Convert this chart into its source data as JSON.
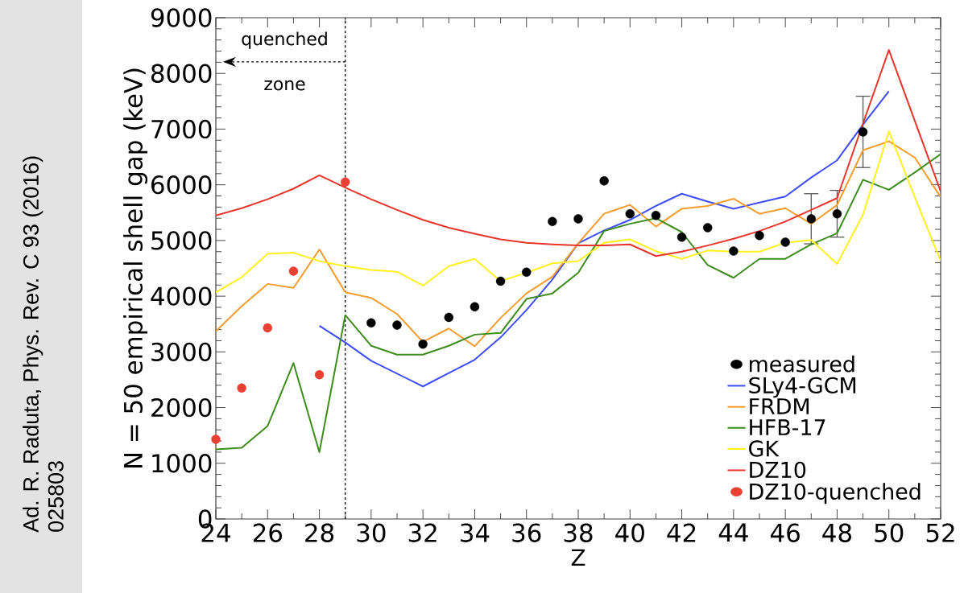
{
  "chart_data": {
    "type": "line",
    "xlabel": "Z",
    "ylabel": "N = 50 empirical shell gap (keV)",
    "xlim": [
      24,
      52
    ],
    "ylim": [
      0,
      9000
    ],
    "xticks": [
      24,
      26,
      28,
      30,
      32,
      34,
      36,
      38,
      40,
      42,
      44,
      46,
      48,
      50,
      52
    ],
    "yticks": [
      0,
      1000,
      2000,
      3000,
      4000,
      5000,
      6000,
      7000,
      8000,
      9000
    ],
    "legend": "bottom right",
    "series": [
      {
        "name": "measured",
        "type": "scatter",
        "marker": "circle",
        "color": "#000000",
        "x": [
          30,
          31,
          32,
          33,
          34,
          35,
          36,
          37,
          38,
          39,
          40,
          41,
          42,
          43,
          44,
          45,
          46,
          47,
          48,
          49
        ],
        "values": [
          3520,
          3480,
          3140,
          3620,
          3810,
          4270,
          4430,
          5340,
          5390,
          6070,
          5480,
          5450,
          5060,
          5230,
          4810,
          5090,
          4970,
          5390,
          5480,
          6950
        ],
        "errors": [
          null,
          null,
          null,
          null,
          null,
          null,
          null,
          null,
          null,
          null,
          null,
          null,
          null,
          null,
          null,
          null,
          null,
          450,
          420,
          640
        ]
      },
      {
        "name": "SLy4-GCM",
        "marker": "none",
        "line_style": "solid",
        "color": "#3d4dfb",
        "x": [
          28,
          29,
          30,
          31,
          32,
          33,
          34,
          35,
          36,
          37,
          38,
          39,
          40,
          41,
          42,
          43,
          44,
          45,
          46,
          47,
          48,
          49,
          50
        ],
        "values": [
          3470,
          3170,
          2840,
          2610,
          2380,
          2620,
          2860,
          3260,
          3750,
          4300,
          4950,
          5180,
          5370,
          5620,
          5840,
          5700,
          5570,
          5680,
          5790,
          6130,
          6440,
          7080,
          7680
        ]
      },
      {
        "name": "FRDM",
        "marker": "none",
        "line_style": "solid",
        "color": "#f59c2e",
        "x": [
          24,
          25,
          26,
          27,
          28,
          29,
          30,
          31,
          32,
          33,
          34,
          35,
          36,
          37,
          38,
          39,
          40,
          41,
          42,
          43,
          44,
          45,
          46,
          47,
          48,
          49,
          50,
          51,
          52
        ],
        "values": [
          3370,
          3820,
          4220,
          4150,
          4840,
          4070,
          3970,
          3680,
          3180,
          3420,
          3100,
          3610,
          4050,
          4350,
          4950,
          5480,
          5640,
          5250,
          5570,
          5620,
          5750,
          5480,
          5580,
          5300,
          5640,
          6620,
          6780,
          6490,
          5780
        ]
      },
      {
        "name": "HFB-17",
        "marker": "none",
        "line_style": "solid",
        "color": "#3e8c1c",
        "x": [
          24,
          25,
          26,
          27,
          28,
          29,
          30,
          31,
          32,
          33,
          34,
          35,
          36,
          37,
          38,
          39,
          40,
          41,
          42,
          43,
          44,
          45,
          46,
          47,
          48,
          49,
          50,
          51,
          52
        ],
        "values": [
          1250,
          1280,
          1670,
          2800,
          1200,
          3660,
          3110,
          2950,
          2950,
          3110,
          3310,
          3340,
          3950,
          4050,
          4420,
          5170,
          5300,
          5400,
          5150,
          4560,
          4330,
          4670,
          4670,
          4930,
          5130,
          6090,
          5910,
          6220,
          6550
        ]
      },
      {
        "name": "GK",
        "marker": "none",
        "line_style": "solid",
        "color": "#fff01e",
        "x": [
          24,
          25,
          26,
          27,
          28,
          29,
          30,
          31,
          32,
          33,
          34,
          35,
          36,
          37,
          38,
          39,
          40,
          41,
          42,
          43,
          44,
          45,
          46,
          47,
          48,
          49,
          50,
          51,
          52
        ],
        "values": [
          4070,
          4340,
          4760,
          4780,
          4630,
          4540,
          4470,
          4440,
          4190,
          4540,
          4670,
          4270,
          4420,
          4590,
          4630,
          4960,
          5020,
          4810,
          4670,
          4820,
          4800,
          4800,
          4960,
          5010,
          4580,
          5460,
          6960,
          5780,
          4630
        ]
      },
      {
        "name": "DZ10",
        "marker": "none",
        "line_style": "solid",
        "color": "#e8352b",
        "x": [
          24,
          25,
          26,
          27,
          28,
          29,
          30,
          31,
          32,
          33,
          34,
          35,
          36,
          37,
          38,
          39,
          40,
          41,
          42,
          43,
          44,
          45,
          46,
          47,
          48,
          49,
          50,
          51,
          52
        ],
        "values": [
          5450,
          5580,
          5740,
          5930,
          6170,
          5950,
          5740,
          5550,
          5370,
          5230,
          5120,
          5020,
          4960,
          4930,
          4910,
          4910,
          4930,
          4720,
          4800,
          4910,
          5030,
          5170,
          5340,
          5550,
          5760,
          7100,
          8420,
          7150,
          5880
        ]
      },
      {
        "name": "DZ10-quenched",
        "type": "scatter",
        "marker": "circle",
        "color": "#e94034",
        "x": [
          24,
          25,
          26,
          27,
          28,
          29
        ],
        "values": [
          1430,
          2350,
          3430,
          4450,
          2590,
          6050
        ]
      }
    ],
    "ref_lines": [
      {
        "axis": "x",
        "value": 29,
        "line_style": "dashed",
        "color": "#000000"
      }
    ],
    "annotations": [
      "quenched",
      "zone",
      "Ad. R. Raduta, Phys. Rev. C 93 (2016) 025803"
    ]
  }
}
